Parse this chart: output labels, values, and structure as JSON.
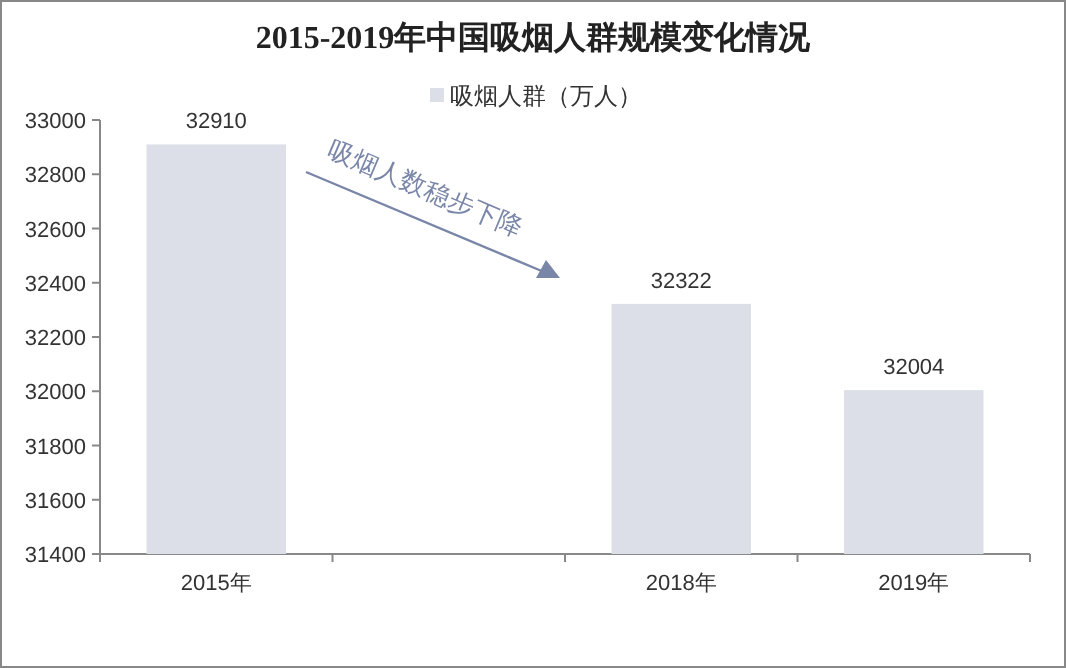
{
  "chart_data": {
    "type": "bar",
    "title": "2015-2019年中国吸烟人群规模变化情况",
    "categories": [
      "2015年",
      null,
      "2018年",
      "2019年"
    ],
    "series": [
      {
        "name": "吸烟人群（万人）",
        "color": "#dddfe8",
        "values": [
          32910,
          null,
          32322,
          32004
        ]
      }
    ],
    "ylim": [
      31400,
      33000
    ],
    "yticks": [
      31400,
      31600,
      31800,
      32000,
      32200,
      32400,
      32600,
      32800,
      33000
    ],
    "grid": false,
    "legend": "top",
    "data_labels": true,
    "annotations": [
      "吸烟人数稳步下降"
    ]
  }
}
